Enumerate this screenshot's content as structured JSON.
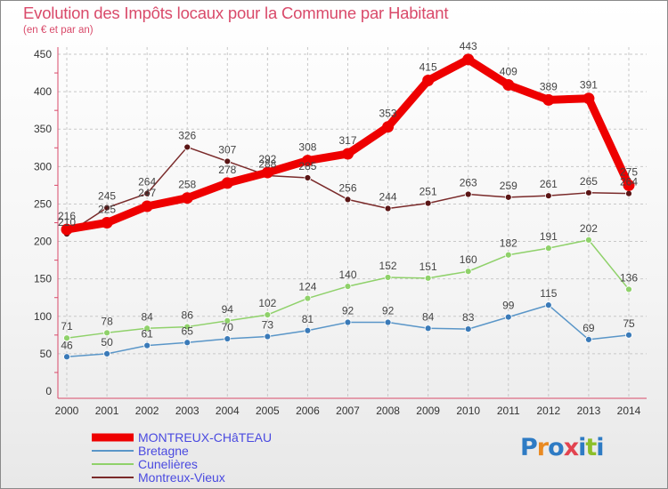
{
  "header": {
    "title": "Evolution des Impôts locaux pour la Commune par Habitant",
    "subtitle": "(en € et par an)"
  },
  "logo": {
    "letters": [
      "P",
      "r",
      "o",
      "x",
      "i",
      "t",
      "i"
    ],
    "colors": [
      "#2e7bc4",
      "#e98a22",
      "#2e7bc4",
      "#e2434f",
      "#2e7bc4",
      "#8cbf2a",
      "#2e7bc4"
    ]
  },
  "chart_data": {
    "type": "line",
    "title": "Evolution des Impôts locaux pour la Commune par Habitant",
    "subtitle": "(en € et par an)",
    "xlabel": "",
    "ylabel": "",
    "x": [
      "2000",
      "2001",
      "2002",
      "2003",
      "2004",
      "2005",
      "2006",
      "2007",
      "2008",
      "2009",
      "2010",
      "2011",
      "2012",
      "2013",
      "2014"
    ],
    "ylim": [
      0,
      450
    ],
    "yticks": [
      0,
      50,
      100,
      150,
      200,
      250,
      300,
      350,
      400,
      450
    ],
    "grid": true,
    "legend_position": "bottom-left",
    "series": [
      {
        "name": "Montreux-Vieux",
        "color": "#7a2a2a",
        "marker": "#5a1515",
        "values": [
          210,
          245,
          264,
          326,
          307,
          288,
          285,
          256,
          244,
          251,
          263,
          259,
          261,
          265,
          264
        ],
        "labels": [
          "210",
          "245",
          "264",
          "326",
          "307",
          "288",
          "285",
          "256",
          "244",
          "251",
          "263",
          "259",
          "261",
          "265",
          "264"
        ]
      },
      {
        "name": "Cunelières",
        "color": "#8fd16a",
        "marker": "#8fd16a",
        "values": [
          71,
          78,
          84,
          86,
          94,
          102,
          124,
          140,
          152,
          151,
          160,
          182,
          191,
          202,
          136
        ],
        "labels": [
          "71",
          "78",
          "84",
          "86",
          "94",
          "102",
          "124",
          "140",
          "152",
          "151",
          "160",
          "182",
          "191",
          "202",
          "136"
        ]
      },
      {
        "name": "Bretagne",
        "color": "#5a96c8",
        "marker": "#3a7ab8",
        "values": [
          46,
          50,
          61,
          65,
          70,
          73,
          81,
          92,
          92,
          84,
          83,
          99,
          115,
          69,
          75
        ],
        "labels": [
          "46",
          "50",
          "61",
          "65",
          "70",
          "73",
          "81",
          "92",
          "92",
          "84",
          "83",
          "99",
          "115",
          "69",
          "75"
        ]
      },
      {
        "name": "MONTREUX-CHâTEAU",
        "color": "#ee0000",
        "marker": "#ee0000",
        "values": [
          216,
          225,
          247,
          258,
          278,
          292,
          308,
          317,
          353,
          415,
          443,
          409,
          389,
          391,
          275
        ],
        "labels": [
          "216",
          "225",
          "247",
          "258",
          "278",
          "292",
          "308",
          "317",
          "353",
          "415",
          "443",
          "409",
          "389",
          "391",
          "275"
        ]
      }
    ],
    "legend": [
      {
        "name": "MONTREUX-CHâTEAU",
        "color": "#ee0000"
      },
      {
        "name": "Bretagne",
        "color": "#5a96c8"
      },
      {
        "name": "Cunelières",
        "color": "#8fd16a"
      },
      {
        "name": "Montreux-Vieux",
        "color": "#7a2a2a"
      }
    ]
  }
}
